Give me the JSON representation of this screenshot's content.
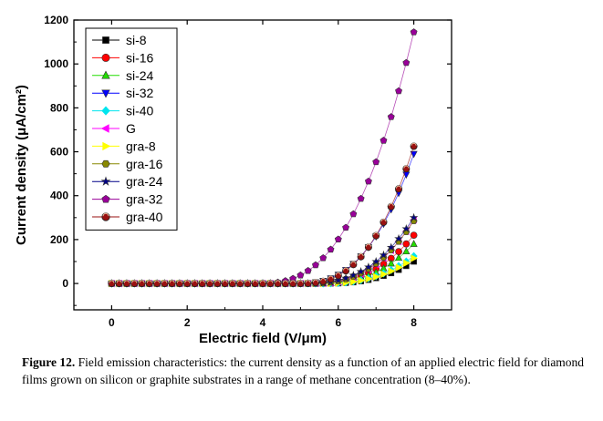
{
  "chart_data": {
    "type": "scatter",
    "xlabel": "Electric field (V/μm)",
    "ylabel": "Current density  (μA/cm²)",
    "xlim": [
      -1,
      9
    ],
    "ylim": [
      -120,
      1200
    ],
    "xticks": [
      0,
      2,
      4,
      6,
      8
    ],
    "yticks": [
      0,
      200,
      400,
      600,
      800,
      1000,
      1200
    ],
    "legend_position": "top-left",
    "grid": false,
    "x": [
      0,
      0.2,
      0.4,
      0.6,
      0.8,
      1.0,
      1.2,
      1.4,
      1.6,
      1.8,
      2.0,
      2.2,
      2.4,
      2.6,
      2.8,
      3.0,
      3.2,
      3.4,
      3.6,
      3.8,
      4.0,
      4.2,
      4.4,
      4.6,
      4.8,
      5.0,
      5.2,
      5.4,
      5.6,
      5.8,
      6.0,
      6.2,
      6.4,
      6.6,
      6.8,
      7.0,
      7.2,
      7.4,
      7.6,
      7.8,
      8.0
    ],
    "series": [
      {
        "name": "si-8",
        "marker": "square",
        "color": "#000000",
        "params": {
          "t": 5.6,
          "v8": 100
        }
      },
      {
        "name": "si-16",
        "marker": "circle",
        "color": "#ff0000",
        "params": {
          "t": 5.3,
          "v8": 220
        }
      },
      {
        "name": "si-24",
        "marker": "triangle-up",
        "color": "#22dd00",
        "params": {
          "t": 5.4,
          "v8": 180
        }
      },
      {
        "name": "si-32",
        "marker": "triangle-down",
        "color": "#0000ff",
        "params": {
          "t": 4.9,
          "v8": 590
        }
      },
      {
        "name": "si-40",
        "marker": "diamond",
        "color": "#00e5ee",
        "params": {
          "t": 5.5,
          "v8": 125
        }
      },
      {
        "name": "G",
        "marker": "triangle-left",
        "color": "#ff00ff",
        "params": {
          "t": 5.3,
          "v8": 290
        }
      },
      {
        "name": "gra-8",
        "marker": "triangle-right",
        "color": "#ffff00",
        "params": {
          "t": 5.5,
          "v8": 115
        }
      },
      {
        "name": "gra-16",
        "marker": "hexagon",
        "color": "#888800",
        "params": {
          "t": 5.2,
          "v8": 285
        }
      },
      {
        "name": "gra-24",
        "marker": "star",
        "color": "#000088",
        "params": {
          "t": 5.1,
          "v8": 300
        }
      },
      {
        "name": "gra-32",
        "marker": "pentagon",
        "color": "#990099",
        "params": {
          "t": 3.9,
          "v8": 1145
        }
      },
      {
        "name": "gra-40",
        "marker": "circle-half",
        "color": "#991111",
        "params": {
          "t": 5.0,
          "v8": 625
        }
      }
    ]
  },
  "caption": {
    "label": "Figure 12.",
    "text": "Field emission characteristics: the current density as a function of an applied electric field for diamond films grown on silicon or graphite substrates in a range of methane concentration (8–40%)."
  }
}
